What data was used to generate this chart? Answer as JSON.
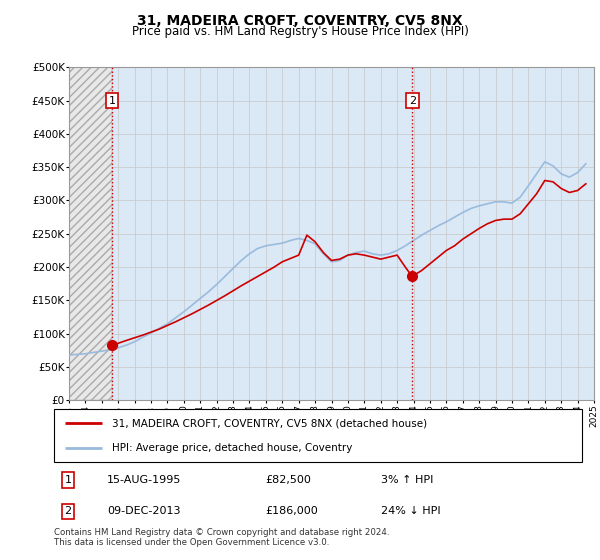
{
  "title": "31, MADEIRA CROFT, COVENTRY, CV5 8NX",
  "subtitle": "Price paid vs. HM Land Registry's House Price Index (HPI)",
  "ylim": [
    0,
    500000
  ],
  "yticks": [
    0,
    50000,
    100000,
    150000,
    200000,
    250000,
    300000,
    350000,
    400000,
    450000,
    500000
  ],
  "ytick_labels": [
    "£0",
    "£50K",
    "£100K",
    "£150K",
    "£200K",
    "£250K",
    "£300K",
    "£350K",
    "£400K",
    "£450K",
    "£500K"
  ],
  "x_start_year": 1993,
  "x_end_year": 2025,
  "xtick_years": [
    1993,
    1994,
    1995,
    1996,
    1997,
    1998,
    1999,
    2000,
    2001,
    2002,
    2003,
    2004,
    2005,
    2006,
    2007,
    2008,
    2009,
    2010,
    2011,
    2012,
    2013,
    2014,
    2015,
    2016,
    2017,
    2018,
    2019,
    2020,
    2021,
    2022,
    2023,
    2024,
    2025
  ],
  "transaction1_date": "15-AUG-1995",
  "transaction1_price": 82500,
  "transaction1_price_str": "£82,500",
  "transaction1_hpi_rel": "3% ↑ HPI",
  "transaction1_x": 1995.62,
  "transaction2_date": "09-DEC-2013",
  "transaction2_price": 186000,
  "transaction2_price_str": "£186,000",
  "transaction2_hpi_rel": "24% ↓ HPI",
  "transaction2_x": 2013.92,
  "legend_line1": "31, MADEIRA CROFT, COVENTRY, CV5 8NX (detached house)",
  "legend_line2": "HPI: Average price, detached house, Coventry",
  "footer": "Contains HM Land Registry data © Crown copyright and database right 2024.\nThis data is licensed under the Open Government Licence v3.0.",
  "price_line_color": "#cc0000",
  "hpi_line_color": "#99bbdd",
  "dashed_line_color": "#cc0000",
  "marker_color": "#cc0000",
  "grid_color": "#c8c8c8",
  "bg_color": "#dbe8f5",
  "hatch_bg_color": "#e8e8e8",
  "hpi_data_x": [
    1993.0,
    1993.5,
    1994.0,
    1994.5,
    1995.0,
    1995.5,
    1996.0,
    1996.5,
    1997.0,
    1997.5,
    1998.0,
    1998.5,
    1999.0,
    1999.5,
    2000.0,
    2000.5,
    2001.0,
    2001.5,
    2002.0,
    2002.5,
    2003.0,
    2003.5,
    2004.0,
    2004.5,
    2005.0,
    2005.5,
    2006.0,
    2006.5,
    2007.0,
    2007.5,
    2008.0,
    2008.5,
    2009.0,
    2009.5,
    2010.0,
    2010.5,
    2011.0,
    2011.5,
    2012.0,
    2012.5,
    2013.0,
    2013.5,
    2014.0,
    2014.5,
    2015.0,
    2015.5,
    2016.0,
    2016.5,
    2017.0,
    2017.5,
    2018.0,
    2018.5,
    2019.0,
    2019.5,
    2020.0,
    2020.5,
    2021.0,
    2021.5,
    2022.0,
    2022.5,
    2023.0,
    2023.5,
    2024.0,
    2024.5
  ],
  "hpi_data_y": [
    68000,
    69000,
    70000,
    72000,
    74000,
    76000,
    79000,
    83000,
    88000,
    95000,
    101000,
    108000,
    115000,
    124000,
    133000,
    143000,
    153000,
    163000,
    174000,
    186000,
    198000,
    210000,
    220000,
    228000,
    232000,
    234000,
    236000,
    240000,
    243000,
    240000,
    235000,
    220000,
    208000,
    210000,
    218000,
    222000,
    224000,
    220000,
    218000,
    220000,
    225000,
    232000,
    240000,
    248000,
    255000,
    262000,
    268000,
    275000,
    282000,
    288000,
    292000,
    295000,
    298000,
    298000,
    296000,
    305000,
    322000,
    340000,
    358000,
    352000,
    340000,
    335000,
    342000,
    355000
  ],
  "price_line_x": [
    1995.62,
    1996.5,
    1997.5,
    1998.5,
    1999.5,
    2000.5,
    2001.5,
    2002.5,
    2003.5,
    2004.5,
    2005.5,
    2006.0,
    2007.0,
    2007.5,
    2008.0,
    2008.5,
    2009.0,
    2009.5,
    2010.0,
    2010.5,
    2011.0,
    2011.5,
    2012.0,
    2012.5,
    2013.0,
    2013.5,
    2013.92,
    2014.5,
    2015.0,
    2015.5,
    2016.0,
    2016.5,
    2017.0,
    2017.5,
    2018.0,
    2018.5,
    2019.0,
    2019.5,
    2020.0,
    2020.5,
    2021.0,
    2021.5,
    2022.0,
    2022.5,
    2023.0,
    2023.5,
    2024.0,
    2024.5
  ],
  "price_line_y": [
    82500,
    90000,
    98000,
    107000,
    118000,
    130000,
    143000,
    157000,
    172000,
    186000,
    200000,
    208000,
    218000,
    248000,
    238000,
    222000,
    210000,
    212000,
    218000,
    220000,
    218000,
    215000,
    212000,
    215000,
    218000,
    200000,
    186000,
    195000,
    205000,
    215000,
    225000,
    232000,
    242000,
    250000,
    258000,
    265000,
    270000,
    272000,
    272000,
    280000,
    295000,
    310000,
    330000,
    328000,
    318000,
    312000,
    315000,
    325000
  ]
}
